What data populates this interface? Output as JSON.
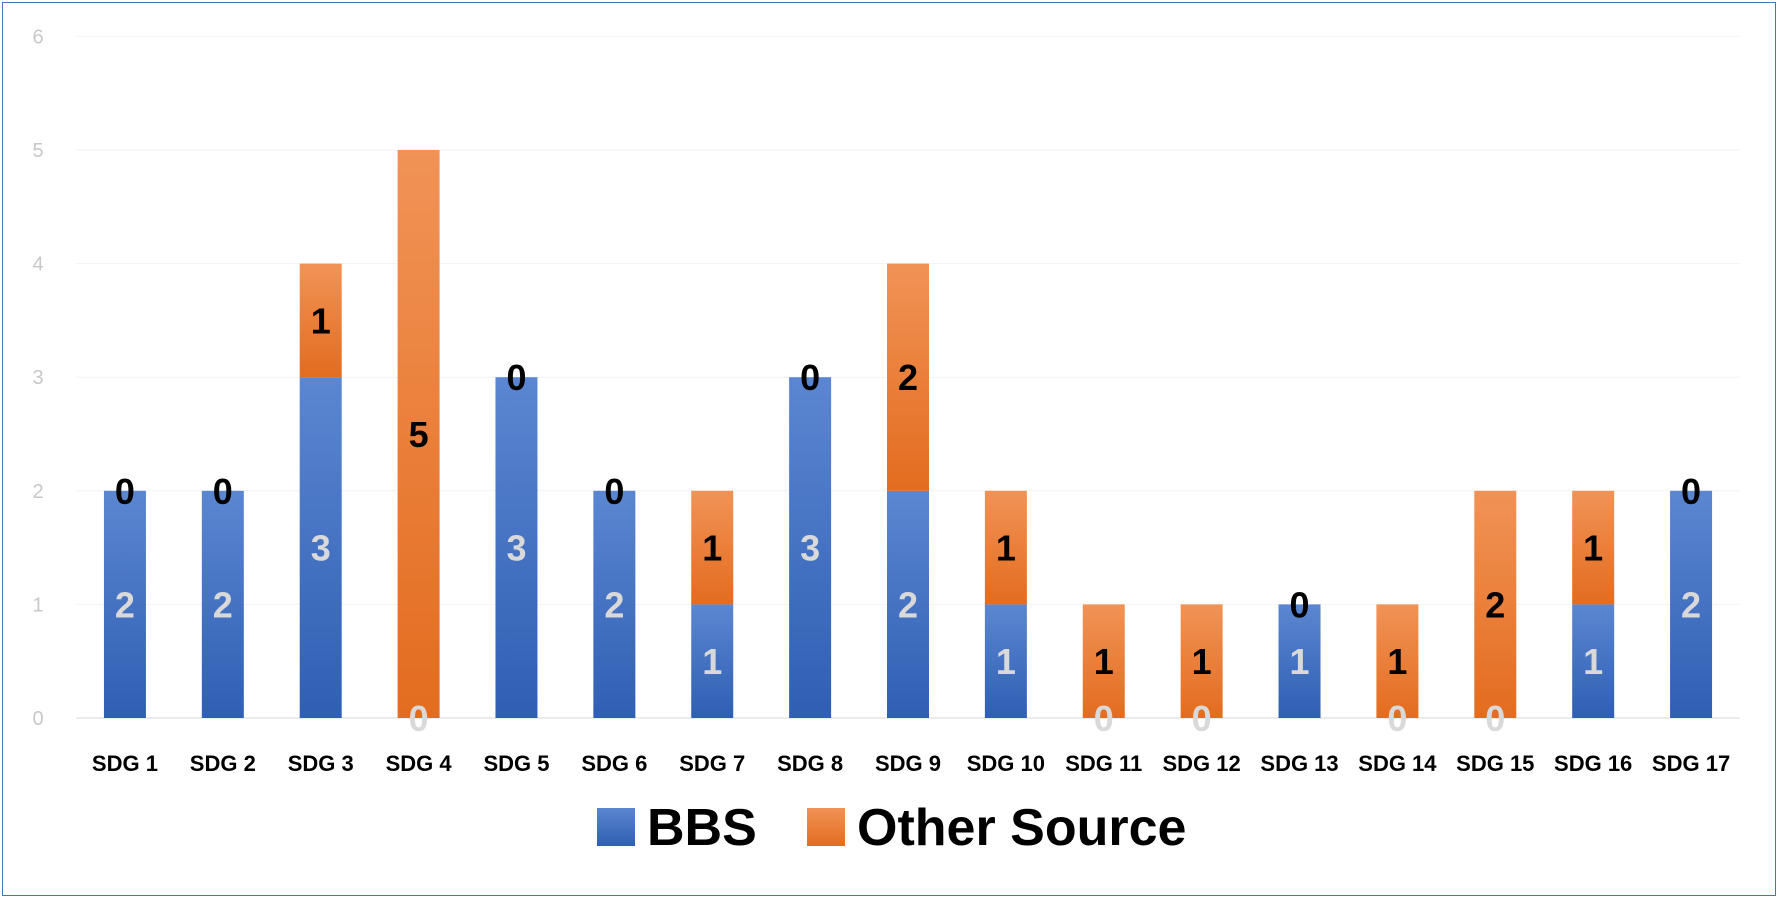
{
  "chart_data": {
    "type": "bar",
    "stacked": true,
    "categories": [
      "SDG 1",
      "SDG 2",
      "SDG 3",
      "SDG 4",
      "SDG 5",
      "SDG 6",
      "SDG 7",
      "SDG 8",
      "SDG 9",
      "SDG 10",
      "SDG 11",
      "SDG 12",
      "SDG 13",
      "SDG 14",
      "SDG 15",
      "SDG 16",
      "SDG 17"
    ],
    "series": [
      {
        "name": "BBS",
        "values": [
          2,
          2,
          3,
          0,
          3,
          2,
          1,
          3,
          2,
          1,
          0,
          0,
          1,
          0,
          0,
          1,
          2
        ],
        "color": "#4472c4"
      },
      {
        "name": "Other Source",
        "values": [
          0,
          0,
          1,
          5,
          0,
          0,
          1,
          0,
          2,
          1,
          1,
          1,
          0,
          1,
          2,
          1,
          0
        ],
        "color": "#ed7d31"
      }
    ],
    "ylim": [
      0,
      6
    ],
    "yticks": [
      "0",
      "1",
      "2",
      "3",
      "4",
      "5",
      "6"
    ],
    "grid": true,
    "legend": "bottom",
    "data_labels": true,
    "title": "",
    "xlabel": "",
    "ylabel": ""
  }
}
